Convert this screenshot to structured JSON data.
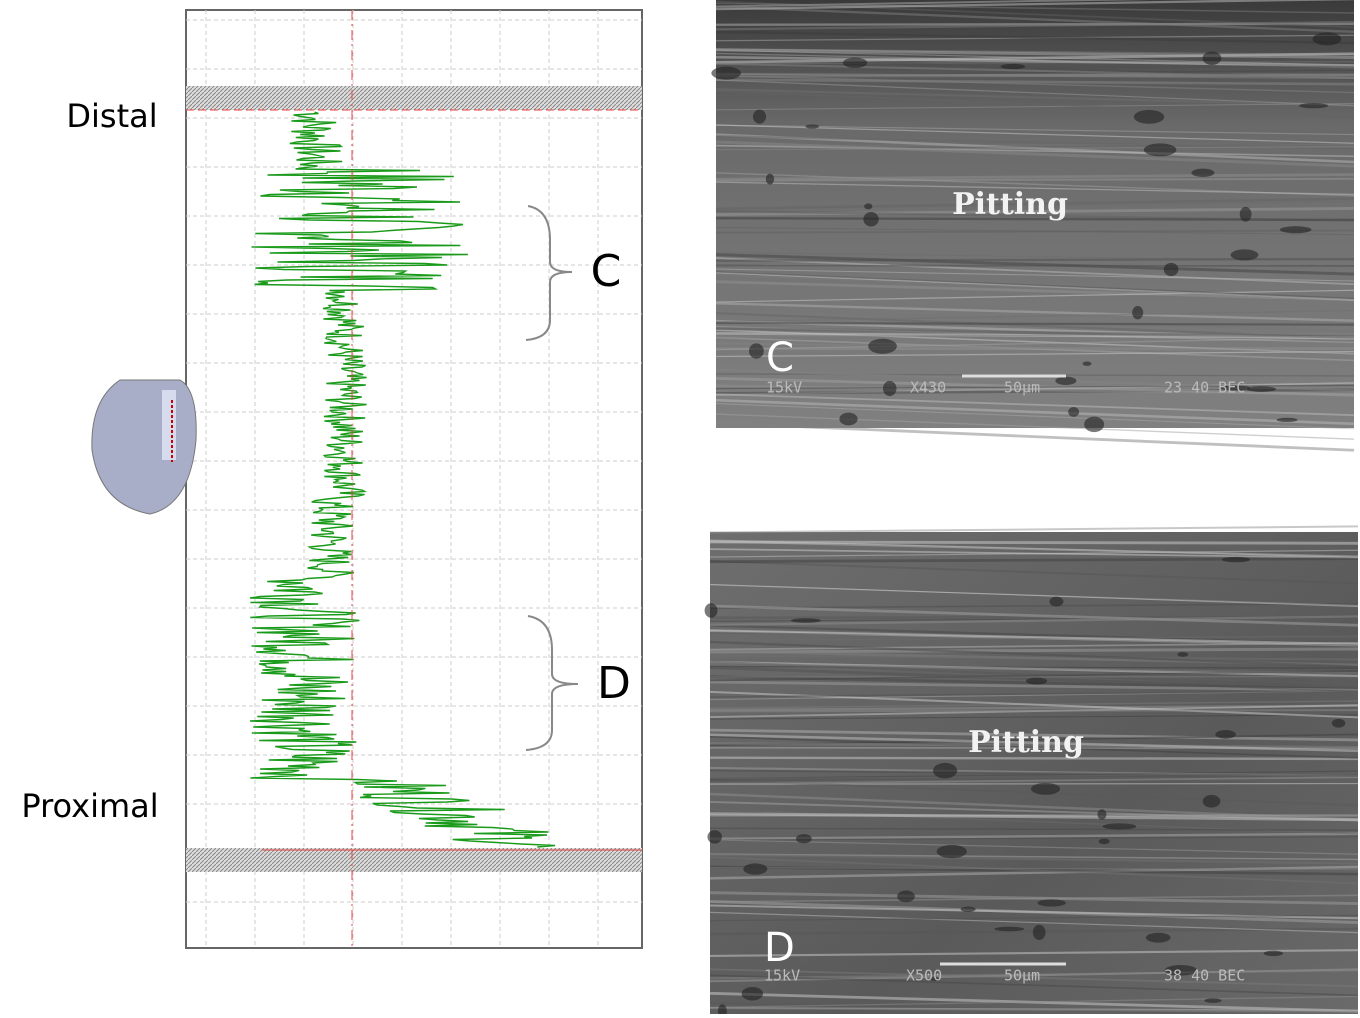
{
  "profile": {
    "distal_label": "Distal",
    "proximal_label": "Proximal",
    "region_c": "C",
    "region_d": "D"
  },
  "images": [
    {
      "letter": "C",
      "annotation": "Pitting",
      "voltage": "15kV",
      "magnification": "X430",
      "scale": "50µm",
      "info": "23 40 BEC"
    },
    {
      "letter": "D",
      "annotation": "Pitting",
      "voltage": "15kV",
      "magnification": "X500",
      "scale": "50µm",
      "info": "38 40 BEC"
    }
  ]
}
